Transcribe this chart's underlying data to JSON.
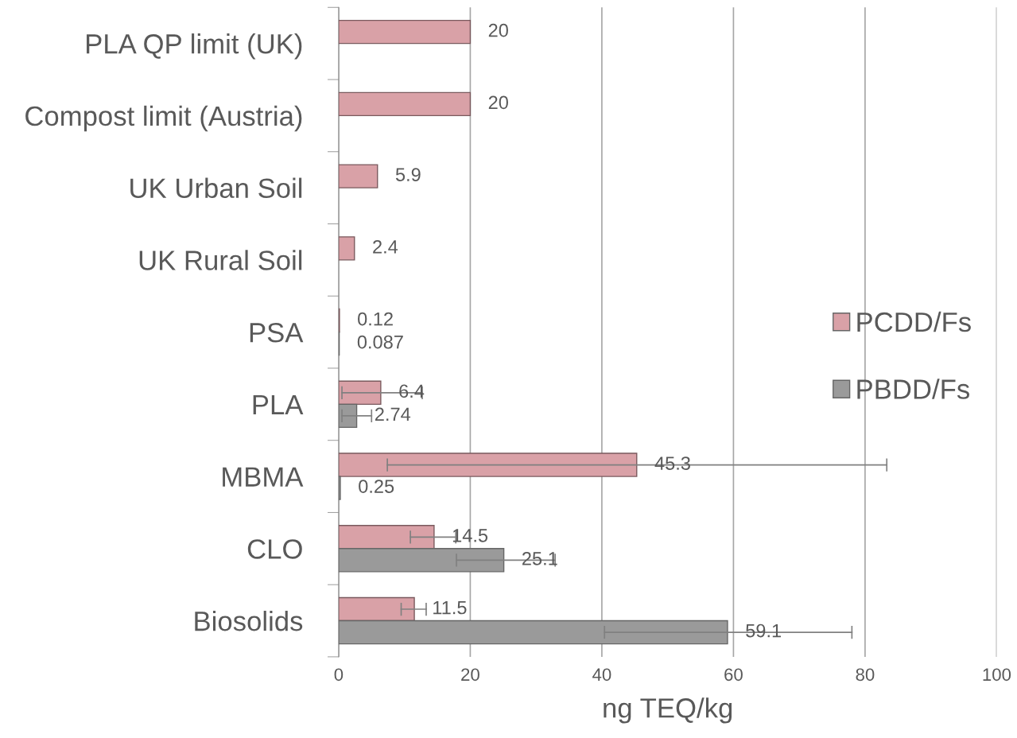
{
  "chart_data": {
    "type": "bar",
    "orientation": "horizontal",
    "xlabel": "ng TEQ/kg",
    "categories": [
      "PLA QP limit (UK)",
      "Compost limit (Austria)",
      "UK Urban Soil",
      "UK Rural Soil",
      "PSA",
      "PLA",
      "MBMA",
      "CLO",
      "Biosolids"
    ],
    "series": [
      {
        "name": "PCDD/Fs",
        "color": "#d9a1a7",
        "values": [
          20,
          20,
          5.9,
          2.4,
          0.12,
          6.4,
          45.3,
          14.5,
          11.5
        ],
        "errors": [
          null,
          null,
          null,
          null,
          null,
          [
            0.5,
            12.7
          ],
          [
            7.4,
            83.3
          ],
          [
            10.9,
            17.8
          ],
          [
            9.5,
            13.3
          ]
        ]
      },
      {
        "name": "PBDD/Fs",
        "color": "#9a9a9a",
        "values": [
          null,
          null,
          null,
          null,
          0.087,
          2.74,
          0.25,
          25.1,
          59.1
        ],
        "errors": [
          null,
          null,
          null,
          null,
          null,
          [
            0.5,
            5.0
          ],
          null,
          [
            17.9,
            32.9
          ],
          [
            40.4,
            78.0
          ]
        ]
      }
    ],
    "xlim": [
      0,
      100
    ],
    "xticks": [
      0,
      20,
      40,
      60,
      80,
      100
    ],
    "grid": "x",
    "legend": "right",
    "data_labels": true
  }
}
